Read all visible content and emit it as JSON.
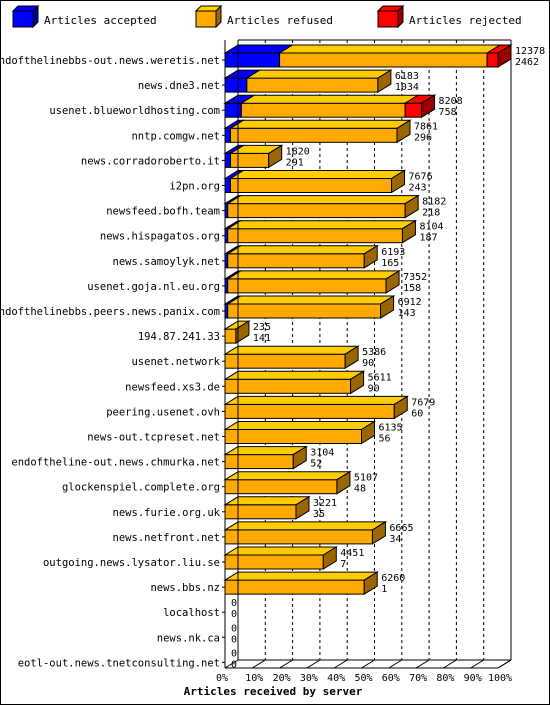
{
  "chart_data": {
    "type": "bar",
    "orientation": "horizontal",
    "stacked": true,
    "value_unit": "percent of total",
    "legend": {
      "placement": "top",
      "entries": [
        {
          "label": "Articles accepted",
          "color": "#0000ff"
        },
        {
          "label": "Articles refused",
          "color": "#ffaa00"
        },
        {
          "label": "Articles rejected",
          "color": "#ff0000"
        }
      ]
    },
    "xlabel": "Articles received by server",
    "ylabel": "",
    "xlim": [
      0,
      100
    ],
    "xticks": [
      "0%",
      "10%",
      "20%",
      "30%",
      "40%",
      "50%",
      "60%",
      "70%",
      "80%",
      "90%",
      "100%"
    ],
    "grid": "vertical dashed",
    "categories": [
      "endofthelinebbs-out.news.weretis.net",
      "news.dne3.net",
      "usenet.blueworldhosting.com",
      "nntp.comgw.net",
      "news.corradoroberto.it",
      "i2pn.org",
      "newsfeed.bofh.team",
      "news.hispagatos.org",
      "news.samoylyk.net",
      "usenet.goja.nl.eu.org",
      "endofthelinebbs.peers.news.panix.com",
      "194.87.241.33",
      "usenet.network",
      "newsfeed.xs3.de",
      "peering.usenet.ovh",
      "news-out.tcpreset.net",
      "endoftheline-out.news.chmurka.net",
      "glockenspiel.complete.org",
      "news.furie.org.uk",
      "news.netfront.net",
      "outgoing.news.lysator.liu.se",
      "news.bbs.nz",
      "localhost",
      "news.nk.ca",
      "eotl-out.news.tnetconsulting.net"
    ],
    "label_top": [
      "12378",
      "6183",
      "8208",
      "7861",
      "1820",
      "7676",
      "8182",
      "8104",
      "6193",
      "7352",
      "6912",
      "235",
      "5386",
      "5611",
      "7679",
      "6135",
      "3104",
      "5107",
      "3221",
      "6665",
      "4451",
      "6260",
      "0",
      "0",
      "0"
    ],
    "label_bottom": [
      "2462",
      "1034",
      "758",
      "296",
      "291",
      "243",
      "218",
      "187",
      "165",
      "158",
      "143",
      "141",
      "90",
      "90",
      "60",
      "56",
      "52",
      "48",
      "35",
      "34",
      "7",
      "1",
      "0",
      "0",
      "0"
    ],
    "series": [
      {
        "name": "Articles accepted",
        "color": "#0000ff",
        "values": [
          20,
          8,
          6,
          2,
          2,
          2,
          1,
          1,
          1,
          1,
          1,
          0,
          0,
          0,
          0,
          0,
          0,
          0,
          0,
          0,
          0,
          0,
          0,
          0,
          0
        ]
      },
      {
        "name": "Articles refused",
        "color": "#ffaa00",
        "values": [
          76,
          48,
          60,
          61,
          14,
          59,
          65,
          64,
          50,
          58,
          56,
          4,
          44,
          46,
          62,
          50,
          25,
          41,
          26,
          54,
          36,
          51,
          0,
          0,
          0
        ]
      },
      {
        "name": "Articles rejected",
        "color": "#ff0000",
        "values": [
          4,
          0,
          6,
          0,
          0,
          0,
          0,
          0,
          0,
          0,
          0,
          0,
          0,
          0,
          0,
          0,
          0,
          0,
          0,
          0,
          0,
          0,
          0,
          0,
          0
        ]
      }
    ]
  }
}
